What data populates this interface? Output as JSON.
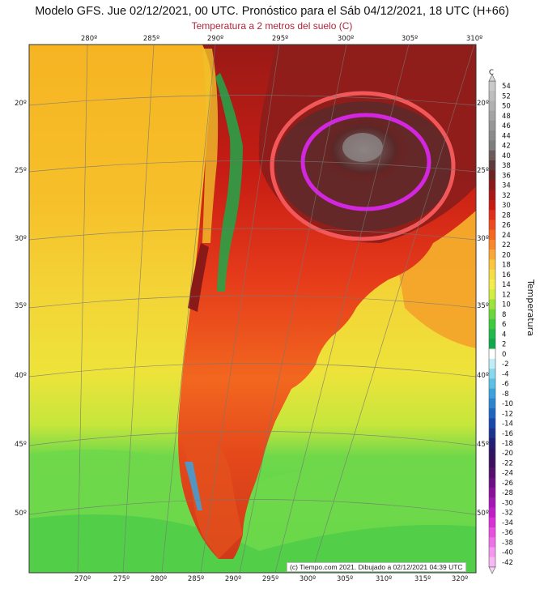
{
  "header": {
    "title": "Modelo GFS. Jue 02/12/2021, 00 UTC. Pronóstico para el Sáb 04/12/2021, 18 UTC (H+66)",
    "subtitle": "Temperatura a 2 metros del suelo (C)"
  },
  "top_lon_ticks": [
    "280º",
    "285º",
    "290º",
    "295º",
    "300º",
    "305º",
    "310º"
  ],
  "bottom_lon_ticks": [
    "270º",
    "275º",
    "280º",
    "285º",
    "290º",
    "295º",
    "300º",
    "305º",
    "310º",
    "315º",
    "320º"
  ],
  "lat_ticks": [
    "20º",
    "25º",
    "30º",
    "35º",
    "40º",
    "45º",
    "50º"
  ],
  "colorbar": {
    "unit": "C",
    "title": "Temperatura",
    "levels": [
      54,
      52,
      50,
      48,
      46,
      44,
      42,
      40,
      38,
      36,
      34,
      32,
      30,
      28,
      26,
      24,
      22,
      20,
      18,
      16,
      14,
      12,
      10,
      8,
      6,
      4,
      2,
      0,
      -2,
      -4,
      -6,
      -8,
      -10,
      -12,
      -14,
      -16,
      -18,
      -20,
      -22,
      -24,
      -26,
      -28,
      -30,
      -32,
      -34,
      -36,
      -38,
      -40,
      -42
    ],
    "colors": [
      "#c9c9c9",
      "#bdbdbd",
      "#b0b0b0",
      "#a3a3a3",
      "#969696",
      "#8a8a8a",
      "#7d7d7d",
      "#6b5a5a",
      "#5e3a3a",
      "#6e2222",
      "#8a1a1a",
      "#a81616",
      "#c81a10",
      "#e0301a",
      "#ee4a1e",
      "#f6661e",
      "#f9862a",
      "#fba734",
      "#fcc63c",
      "#f7dd44",
      "#f2ec4c",
      "#d2ee40",
      "#9fe33a",
      "#6bd83a",
      "#3ccc3a",
      "#22b84a",
      "#11a84a",
      "#ffffff",
      "#bfeef7",
      "#88d8ee",
      "#5cc0e6",
      "#3aa2dd",
      "#2a84d2",
      "#1e64c2",
      "#1a48aa",
      "#1c3290",
      "#221e78",
      "#2c1462",
      "#3c0f5e",
      "#530e6e",
      "#6e0e84",
      "#8a109c",
      "#a616b4",
      "#c21cc8",
      "#da2ed6",
      "#e84ee0",
      "#f070e8",
      "#f596ef",
      "#f8b8f4"
    ]
  },
  "credit": "(c) Tiempo.com 2021. Dibujado a 02/12/2021 04:39 UTC",
  "legend_colors": {
    "ocean_warm": "#f6b423",
    "ocean_mid": "#f4d236",
    "ocean_cool": "#d8e83a",
    "ocean_cold": "#6fd84a",
    "land_hot": "#c91a12",
    "land_veryhot": "#7a1a1a",
    "land_extreme": "#7a7373",
    "contour_inner": "#d226e0",
    "contour_outer": "#f2585a"
  }
}
